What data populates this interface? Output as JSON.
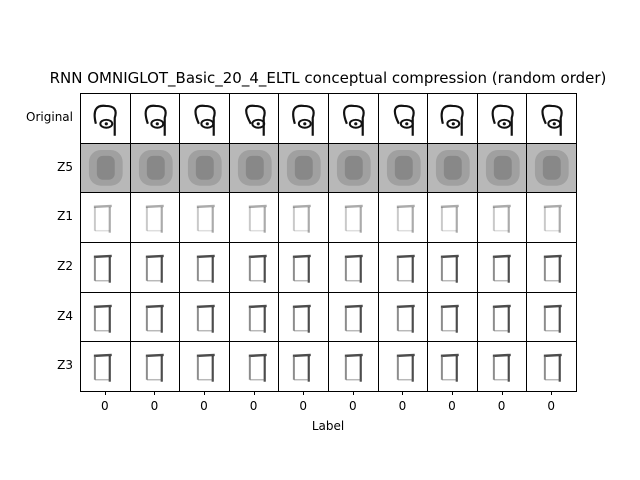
{
  "title": "RNN OMNIGLOT_Basic_20_4_ELTL conceptual compression (random order)",
  "xlabel": "Label",
  "row_labels": [
    "Original",
    "Z5",
    "Z1",
    "Z2",
    "Z4",
    "Z3"
  ],
  "col_labels": [
    "0",
    "0",
    "0",
    "0",
    "0",
    "0",
    "0",
    "0",
    "0",
    "0"
  ],
  "image_description": "Grid of handwritten-character thumbnails: top row shows original glyphs, Z5 row gray blurry reconstructions, Z1-Z4 rows faint sketch reconstructions",
  "colors": {
    "z5_background": "#b8b8b8",
    "stroke": "#111111",
    "faint_stroke": "#666666"
  }
}
